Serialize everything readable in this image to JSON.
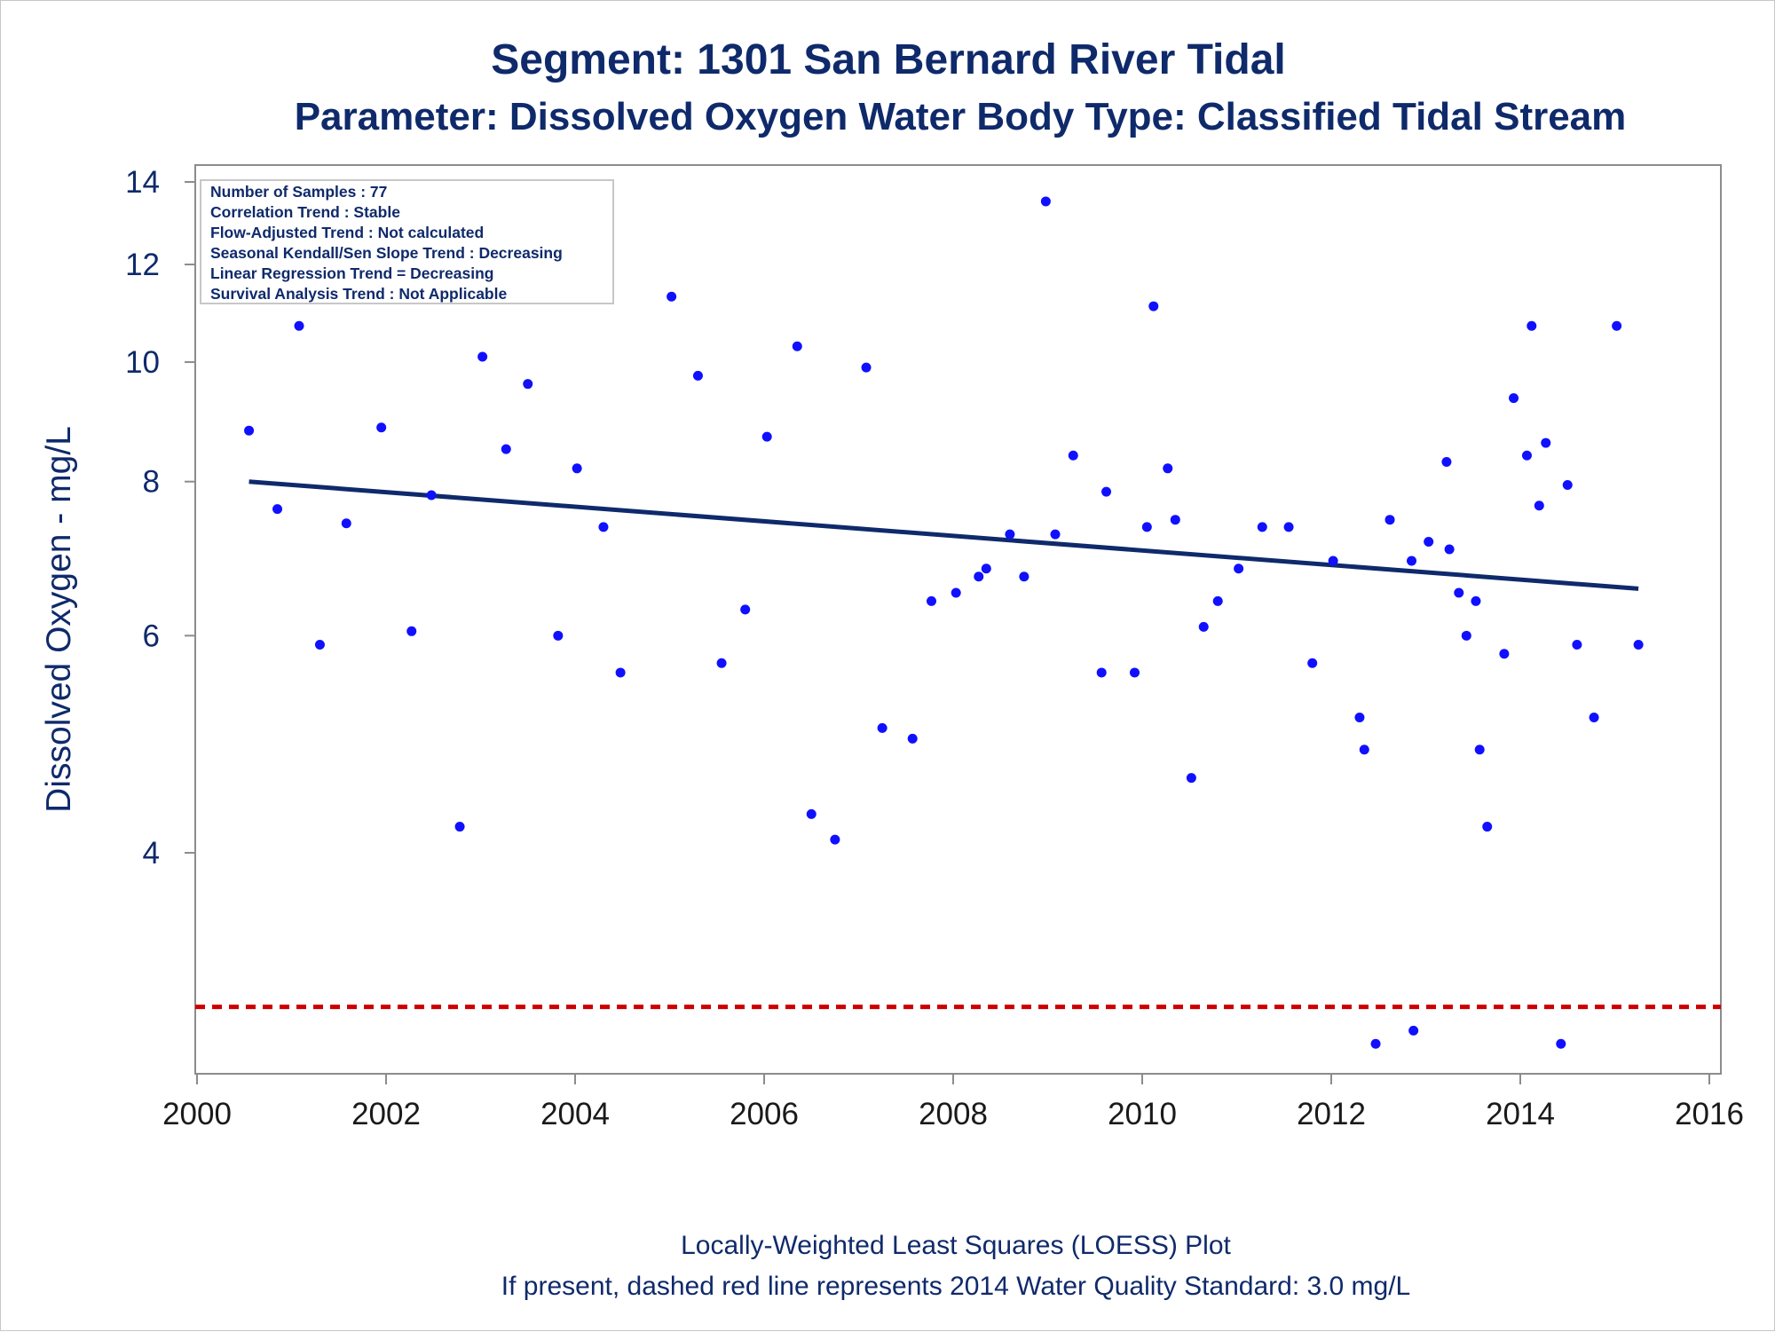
{
  "title_line1": "Segment: 1301  San Bernard River Tidal",
  "title_line2": "Parameter: Dissolved Oxygen   Water Body Type: Classified Tidal Stream",
  "footnote_line1": "Locally-Weighted Least Squares (LOESS) Plot",
  "footnote_line2": "If present, dashed red line represents 2014 Water Quality Standard: 3.0 mg/L",
  "inset": [
    "Number of Samples : 77",
    "Correlation Trend : Stable",
    "Flow-Adjusted Trend : Not calculated",
    "Seasonal Kendall/Sen Slope Trend : Decreasing",
    "Linear Regression Trend = Decreasing",
    "Survival Analysis Trend : Not Applicable"
  ],
  "colors": {
    "points": "#1010ff",
    "trend_line": "#0f2a6b",
    "standard_line": "#cc0000",
    "text": "#0f2a6b",
    "axis": "#8c8c8c"
  },
  "chart_data": {
    "type": "scatter",
    "xlabel": "",
    "ylabel": "Dissolved Oxygen - mg/L",
    "y_scale": "log",
    "xlim": [
      2000,
      2016
    ],
    "ylim": [
      2.7,
      14
    ],
    "x_ticks": [
      "2000",
      "2002",
      "2004",
      "2006",
      "2008",
      "2010",
      "2012",
      "2014",
      "2016"
    ],
    "y_ticks": [
      "4",
      "6",
      "8",
      "10",
      "12",
      "14"
    ],
    "grid": false,
    "points": [
      [
        2000.55,
        8.8
      ],
      [
        2000.85,
        7.6
      ],
      [
        2001.08,
        10.7
      ],
      [
        2001.3,
        5.9
      ],
      [
        2001.58,
        7.4
      ],
      [
        2001.95,
        8.85
      ],
      [
        2002.27,
        6.05
      ],
      [
        2002.48,
        7.8
      ],
      [
        2002.78,
        4.2
      ],
      [
        2003.02,
        10.1
      ],
      [
        2003.27,
        8.5
      ],
      [
        2003.5,
        9.6
      ],
      [
        2003.82,
        6.0
      ],
      [
        2004.02,
        8.2
      ],
      [
        2004.3,
        7.35
      ],
      [
        2004.48,
        5.6
      ],
      [
        2005.02,
        11.3
      ],
      [
        2005.3,
        9.75
      ],
      [
        2005.55,
        5.7
      ],
      [
        2005.8,
        6.3
      ],
      [
        2006.03,
        8.7
      ],
      [
        2006.35,
        10.3
      ],
      [
        2006.5,
        4.3
      ],
      [
        2006.75,
        4.1
      ],
      [
        2007.08,
        9.9
      ],
      [
        2007.25,
        5.05
      ],
      [
        2007.57,
        4.95
      ],
      [
        2007.77,
        6.4
      ],
      [
        2008.03,
        6.5
      ],
      [
        2008.27,
        6.7
      ],
      [
        2008.35,
        6.8
      ],
      [
        2008.6,
        7.25
      ],
      [
        2008.75,
        6.7
      ],
      [
        2008.98,
        13.5
      ],
      [
        2009.08,
        7.25
      ],
      [
        2009.27,
        8.4
      ],
      [
        2009.57,
        5.6
      ],
      [
        2009.62,
        7.85
      ],
      [
        2009.92,
        5.6
      ],
      [
        2010.05,
        7.35
      ],
      [
        2010.12,
        11.1
      ],
      [
        2010.27,
        8.2
      ],
      [
        2010.35,
        7.45
      ],
      [
        2010.52,
        4.6
      ],
      [
        2010.65,
        6.1
      ],
      [
        2010.8,
        6.4
      ],
      [
        2011.02,
        6.8
      ],
      [
        2011.27,
        7.35
      ],
      [
        2011.55,
        7.35
      ],
      [
        2011.8,
        5.7
      ],
      [
        2012.02,
        6.9
      ],
      [
        2012.3,
        5.15
      ],
      [
        2012.35,
        4.85
      ],
      [
        2012.47,
        2.8
      ],
      [
        2012.62,
        7.45
      ],
      [
        2012.85,
        6.9
      ],
      [
        2012.87,
        2.87
      ],
      [
        2013.03,
        7.15
      ],
      [
        2013.22,
        8.3
      ],
      [
        2013.25,
        7.05
      ],
      [
        2013.35,
        6.5
      ],
      [
        2013.43,
        6.0
      ],
      [
        2013.53,
        6.4
      ],
      [
        2013.57,
        4.85
      ],
      [
        2013.65,
        4.2
      ],
      [
        2013.83,
        5.8
      ],
      [
        2013.93,
        9.35
      ],
      [
        2014.07,
        8.4
      ],
      [
        2014.12,
        10.7
      ],
      [
        2014.2,
        7.65
      ],
      [
        2014.27,
        8.6
      ],
      [
        2014.43,
        2.8
      ],
      [
        2014.5,
        7.95
      ],
      [
        2014.6,
        5.9
      ],
      [
        2014.78,
        5.15
      ],
      [
        2015.02,
        10.7
      ],
      [
        2015.25,
        5.9
      ]
    ],
    "trend_line": [
      [
        2000.55,
        8.0
      ],
      [
        2015.25,
        6.55
      ]
    ],
    "standard_line": 3.0
  }
}
